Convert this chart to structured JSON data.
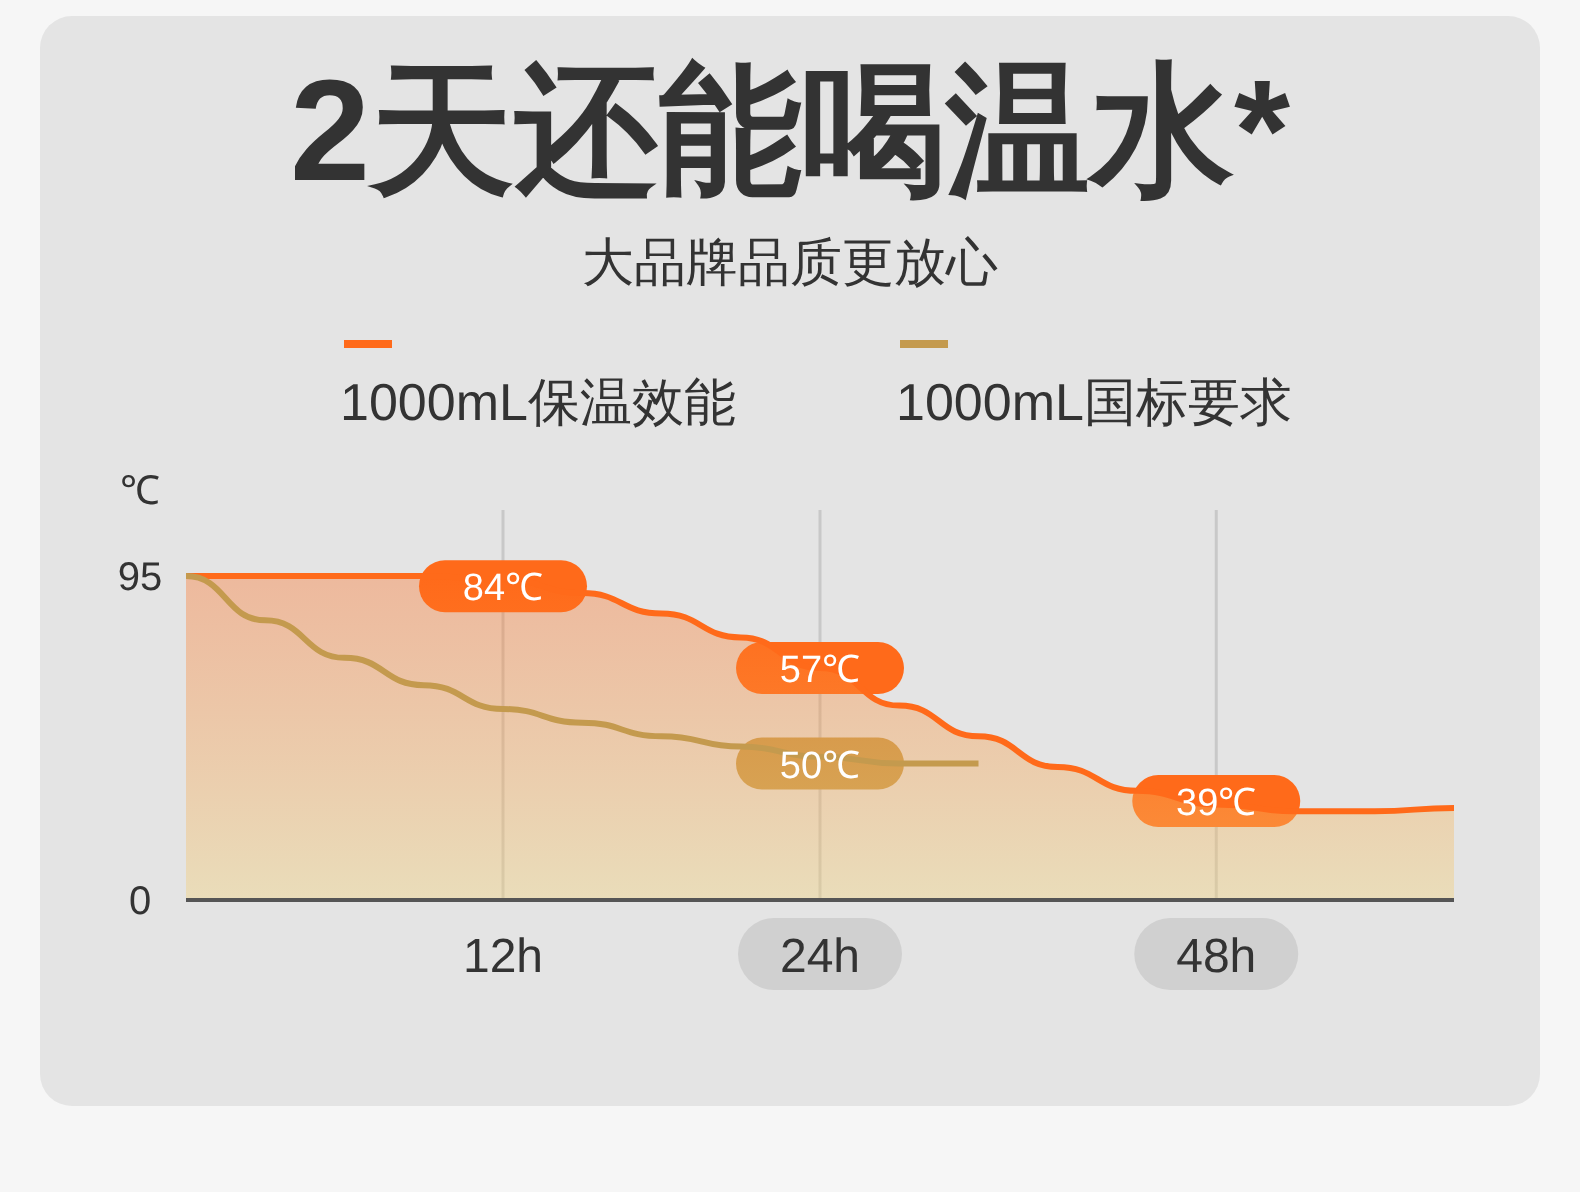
{
  "chart_data": {
    "type": "area",
    "title": "2天还能喝温水*",
    "subtitle": "大品牌品质更放心",
    "ylabel": "℃",
    "categories": [
      null,
      null,
      null,
      null,
      "12h",
      null,
      null,
      null,
      "24h",
      null,
      null,
      null,
      null,
      "48h",
      null,
      null,
      null
    ],
    "series": [
      {
        "name": "1000mL保温效能",
        "color": "#ff6a1a",
        "values": [
          95,
          95,
          95,
          95,
          94,
          90,
          84,
          77,
          68,
          57,
          48,
          39,
          32,
          28,
          26,
          26,
          27
        ]
      },
      {
        "name": "1000mL国标要求",
        "type": "line",
        "color": "#c49a4e",
        "values": [
          95,
          82,
          71,
          63,
          56,
          52,
          48,
          45,
          42,
          40,
          40,
          null,
          null,
          null,
          null,
          null,
          null
        ]
      }
    ],
    "ylim": [
      0,
      95
    ],
    "yticks": [
      0,
      95
    ],
    "grid": "x",
    "legend": "top",
    "marker": "none",
    "line_style": "solid",
    "annotations": [
      {
        "text": "84℃",
        "x": "12h",
        "y": 92
      },
      {
        "text": "57℃",
        "x": "24h",
        "y": 68
      },
      {
        "text": "50℃",
        "x": "24h",
        "y": 40
      },
      {
        "text": "39℃",
        "x": "48h",
        "y": 29
      }
    ]
  }
}
